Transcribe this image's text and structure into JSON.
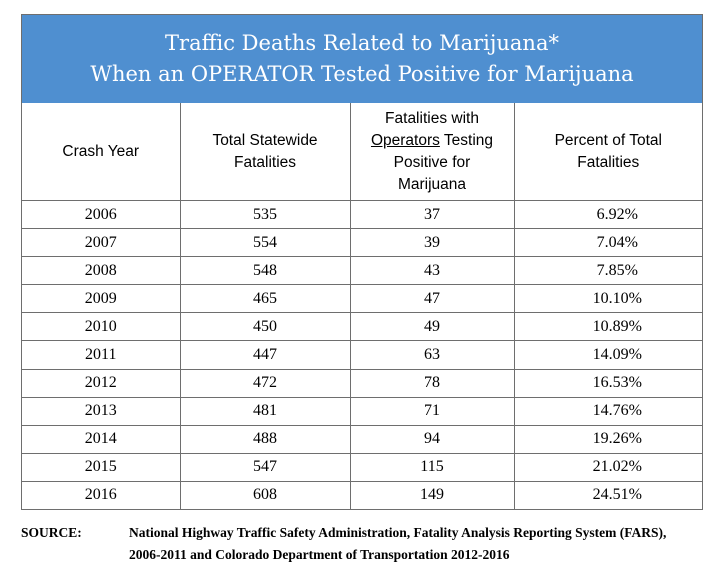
{
  "title": {
    "line1": "Traffic Deaths Related to Marijuana*",
    "line2": "When an OPERATOR Tested Positive for Marijuana"
  },
  "headers": {
    "year": "Crash Year",
    "total_line1": "Total Statewide",
    "total_line2": "Fatalities",
    "mj_line1": "Fatalities with",
    "mj_line2_underlined": "Operators",
    "mj_line2_rest": " Testing",
    "mj_line3": "Positive for Marijuana",
    "pct_line1": "Percent of Total",
    "pct_line2": "Fatalities"
  },
  "rows": [
    {
      "year": "2006",
      "total": "535",
      "mj": "37",
      "pct": "6.92%"
    },
    {
      "year": "2007",
      "total": "554",
      "mj": "39",
      "pct": "7.04%"
    },
    {
      "year": "2008",
      "total": "548",
      "mj": "43",
      "pct": "7.85%"
    },
    {
      "year": "2009",
      "total": "465",
      "mj": "47",
      "pct": "10.10%"
    },
    {
      "year": "2010",
      "total": "450",
      "mj": "49",
      "pct": "10.89%"
    },
    {
      "year": "2011",
      "total": "447",
      "mj": "63",
      "pct": "14.09%"
    },
    {
      "year": "2012",
      "total": "472",
      "mj": "78",
      "pct": "16.53%"
    },
    {
      "year": "2013",
      "total": "481",
      "mj": "71",
      "pct": "14.76%"
    },
    {
      "year": "2014",
      "total": "488",
      "mj": "94",
      "pct": "19.26%"
    },
    {
      "year": "2015",
      "total": "547",
      "mj": "115",
      "pct": "21.02%"
    },
    {
      "year": "2016",
      "total": "608",
      "mj": "149",
      "pct": "24.51%"
    }
  ],
  "source": {
    "label": "SOURCE:",
    "line1": "National Highway Traffic Safety Administration, Fatality Analysis Reporting System (FARS),",
    "line2": "2006-2011 and Colorado Department of Transportation 2012-2016"
  },
  "colors": {
    "title_background": "#4f8fd0",
    "title_text": "#ffffff",
    "border": "#6e6e6e"
  }
}
